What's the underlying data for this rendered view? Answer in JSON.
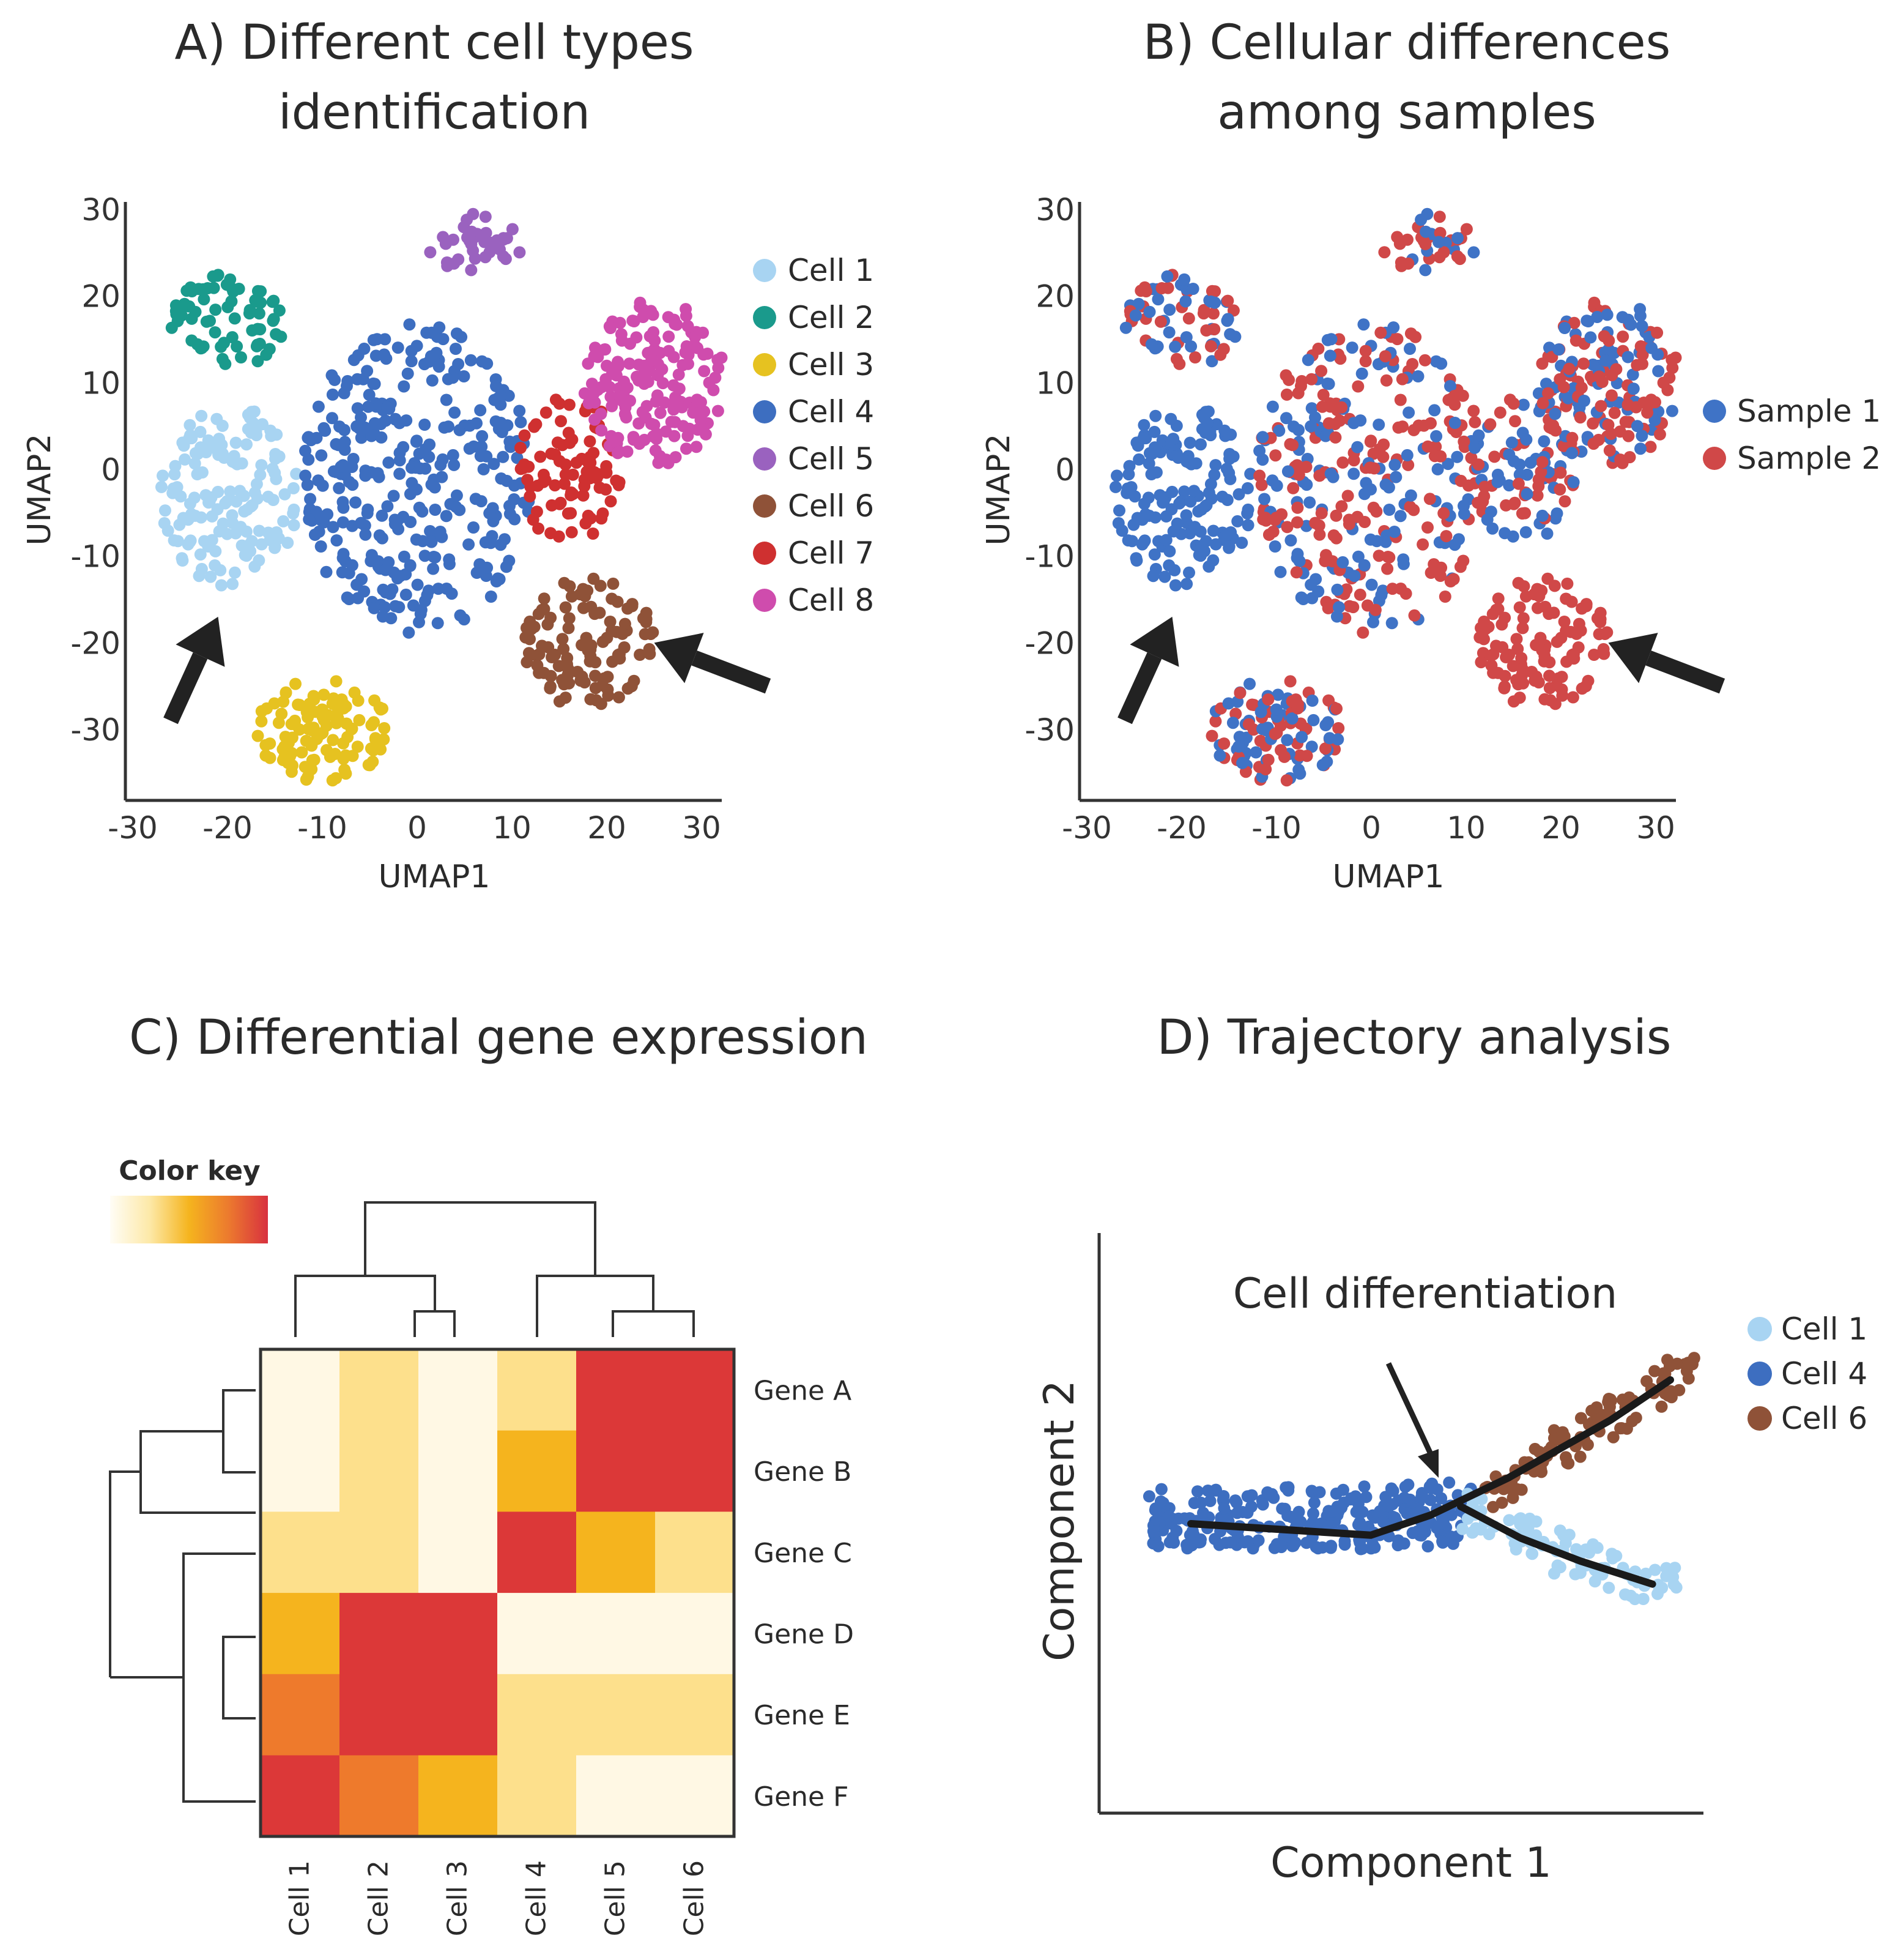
{
  "colors": {
    "cell1": "#a8d4f2",
    "cell2": "#1a9a8c",
    "cell3": "#e6c220",
    "cell4": "#3d6ec0",
    "cell5": "#9a62bf",
    "cell6": "#8f5238",
    "cell7": "#cf3030",
    "cell8": "#cf4cad",
    "sample1": "#3f73c6",
    "sample2": "#d04848",
    "axis": "#333333",
    "arrow": "#222222"
  },
  "panelA": {
    "title_line1": "A) Different cell types",
    "title_line2": "identification",
    "xlabel": "UMAP1",
    "ylabel": "UMAP2",
    "xticks": [
      "-30",
      "-20",
      "-10",
      "0",
      "10",
      "20",
      "30"
    ],
    "yticks": [
      "30",
      "20",
      "10",
      "0",
      "-10",
      "-20",
      "-30"
    ],
    "legend": [
      "Cell 1",
      "Cell 2",
      "Cell 3",
      "Cell 4",
      "Cell 5",
      "Cell 6",
      "Cell 7",
      "Cell 8"
    ]
  },
  "panelB": {
    "title_line1": "B) Cellular differences",
    "title_line2": "among samples",
    "xlabel": "UMAP1",
    "ylabel": "UMAP2",
    "xticks": [
      "-30",
      "-20",
      "-10",
      "0",
      "10",
      "20",
      "30"
    ],
    "yticks": [
      "30",
      "20",
      "10",
      "0",
      "-10",
      "-20",
      "-30"
    ],
    "legend": [
      "Sample 1",
      "Sample 2"
    ]
  },
  "panelC": {
    "title": "C) Differential gene expression",
    "color_key_label": "Color key"
  },
  "panelD": {
    "title": "D) Trajectory analysis",
    "annotation": "Cell differentiation",
    "xlabel": "Component 1",
    "ylabel": "Component 2",
    "legend": [
      "Cell 1",
      "Cell 4",
      "Cell 6"
    ]
  },
  "chart_data": [
    {
      "id": "A",
      "type": "scatter",
      "title": "A) Different cell types identification",
      "xlabel": "UMAP1",
      "ylabel": "UMAP2",
      "xlim": [
        -30,
        30
      ],
      "ylim": [
        -37,
        30
      ],
      "clusters": [
        {
          "name": "Cell 1",
          "center": [
            -20,
            -3
          ],
          "radius": [
            7.5,
            10.5
          ],
          "count": 150
        },
        {
          "name": "Cell 2",
          "center": [
            -20,
            17
          ],
          "radius": [
            6,
            5.5
          ],
          "count": 70
        },
        {
          "name": "Cell 3",
          "center": [
            -10,
            -30
          ],
          "radius": [
            7,
            6
          ],
          "count": 110
        },
        {
          "name": "Cell 4",
          "center": [
            0,
            -1
          ],
          "radius": [
            12,
            18
          ],
          "count": 330
        },
        {
          "name": "Cell 5",
          "center": [
            6,
            26
          ],
          "radius": [
            5,
            3.5
          ],
          "count": 35
        },
        {
          "name": "Cell 6",
          "center": [
            18,
            -20
          ],
          "radius": [
            7,
            7.5
          ],
          "count": 110
        },
        {
          "name": "Cell 7",
          "center": [
            16,
            0
          ],
          "radius": [
            5.5,
            8.5
          ],
          "count": 90
        },
        {
          "name": "Cell 8",
          "center": [
            25,
            10
          ],
          "radius": [
            7.5,
            9.5
          ],
          "count": 170
        }
      ],
      "arrows": [
        {
          "from": [
            -26,
            -29
          ],
          "to": [
            -21,
            -17
          ]
        },
        {
          "from": [
            37,
            -25
          ],
          "to": [
            25,
            -20
          ]
        }
      ]
    },
    {
      "id": "B",
      "type": "scatter",
      "title": "B) Cellular differences among samples",
      "xlabel": "UMAP1",
      "ylabel": "UMAP2",
      "xlim": [
        -30,
        30
      ],
      "ylim": [
        -37,
        30
      ],
      "series": [
        "Sample 1",
        "Sample 2"
      ],
      "clusters": [
        {
          "name": "Cell 1",
          "sample2_share": 0.0
        },
        {
          "name": "Cell 2",
          "sample2_share": 0.5
        },
        {
          "name": "Cell 3",
          "sample2_share": 0.5
        },
        {
          "name": "Cell 4",
          "sample2_share": 0.55
        },
        {
          "name": "Cell 5",
          "sample2_share": 0.5
        },
        {
          "name": "Cell 6",
          "sample2_share": 1.0
        },
        {
          "name": "Cell 7",
          "sample2_share": 0.5
        },
        {
          "name": "Cell 8",
          "sample2_share": 0.5
        }
      ]
    },
    {
      "id": "C",
      "type": "heatmap",
      "title": "C) Differential gene expression",
      "rows": [
        "Gene A",
        "Gene B",
        "Gene C",
        "Gene D",
        "Gene E",
        "Gene F"
      ],
      "cols": [
        "Cell 1",
        "Cell 2",
        "Cell 3",
        "Cell 4",
        "Cell 5",
        "Cell 6"
      ],
      "values": [
        [
          0.05,
          0.3,
          0.05,
          0.3,
          0.9,
          0.95
        ],
        [
          0.05,
          0.3,
          0.05,
          0.45,
          0.95,
          0.9
        ],
        [
          0.3,
          0.3,
          0.05,
          0.95,
          0.45,
          0.3
        ],
        [
          0.5,
          0.9,
          0.95,
          0.05,
          0.05,
          0.05
        ],
        [
          0.7,
          0.95,
          0.9,
          0.3,
          0.3,
          0.3
        ],
        [
          0.95,
          0.7,
          0.5,
          0.3,
          0.05,
          0.05
        ]
      ],
      "color_scale": [
        "#fff8e4",
        "#fde08c",
        "#f5b41e",
        "#ee7a2c",
        "#dc3838"
      ]
    },
    {
      "id": "D",
      "type": "scatter",
      "title": "D) Trajectory analysis",
      "xlabel": "Component 1",
      "ylabel": "Component 2",
      "xlim": [
        0,
        100
      ],
      "ylim": [
        0,
        100
      ],
      "series": [
        {
          "name": "Cell 4",
          "x_range": [
            8,
            62
          ],
          "count": 260
        },
        {
          "name": "Cell 6",
          "x_range": [
            64,
            99
          ],
          "count": 95
        },
        {
          "name": "Cell 1",
          "x_range": [
            60,
            98
          ],
          "count": 95
        }
      ],
      "trajectory_main": [
        [
          15,
          50
        ],
        [
          30,
          49
        ],
        [
          45,
          48
        ],
        [
          55,
          51.5
        ],
        [
          68,
          58
        ],
        [
          85,
          68
        ],
        [
          95,
          75
        ]
      ],
      "trajectory_branch": [
        [
          60,
          53
        ],
        [
          70,
          47.5
        ],
        [
          80,
          43.5
        ],
        [
          92,
          39.5
        ]
      ],
      "annotation": "Cell differentiation"
    }
  ]
}
